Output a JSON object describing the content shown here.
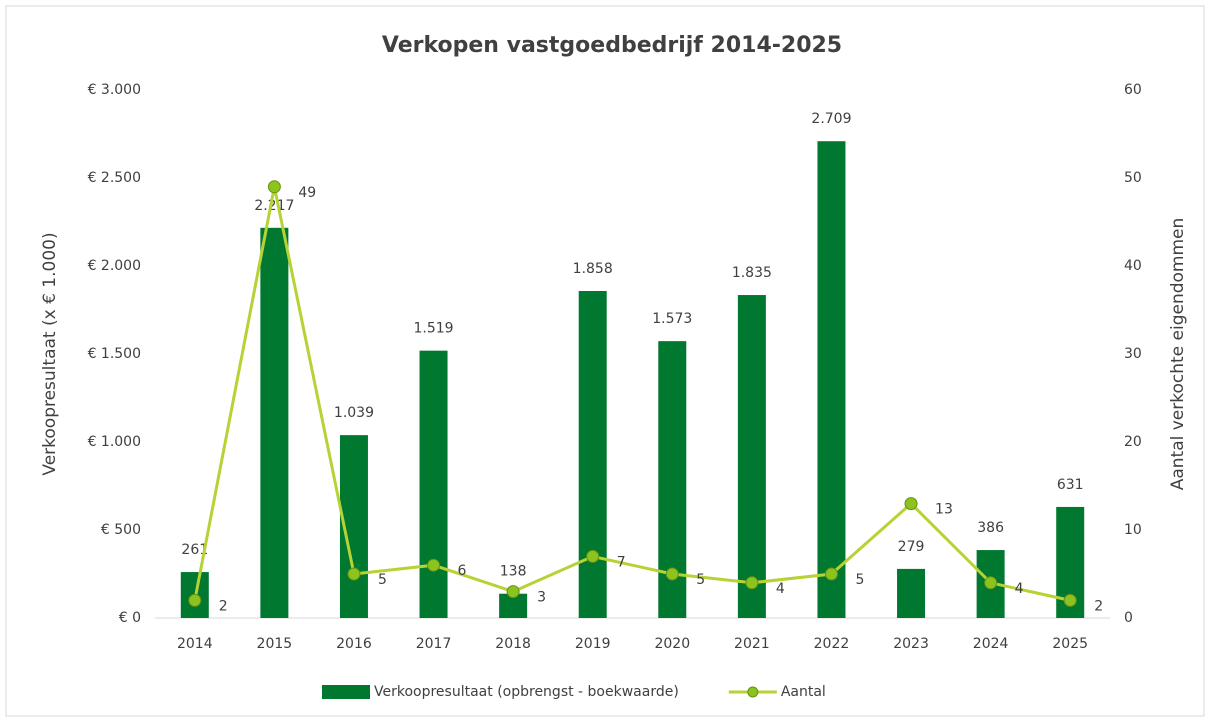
{
  "chart_data": {
    "type": "bar",
    "title": "Verkopen vastgoedbedrijf 2014-2025",
    "y_label": "Verkoopresultaat  (x € 1.000)",
    "y2_label": "Aantal verkochte eigendommen",
    "categories": [
      "2014",
      "2015",
      "2016",
      "2017",
      "2018",
      "2019",
      "2020",
      "2021",
      "2022",
      "2023",
      "2024",
      "2025"
    ],
    "series": [
      {
        "name": "Verkoopresultaat (opbrengst - boekwaarde)",
        "type": "bar",
        "color": "#00782f",
        "values": [
          261,
          2217,
          1039,
          1519,
          138,
          1858,
          1573,
          1835,
          2709,
          279,
          386,
          631
        ],
        "value_labels": [
          "261",
          "2.217",
          "1.039",
          "1.519",
          "138",
          "1.858",
          "1.573",
          "1.835",
          "2.709",
          "279",
          "386",
          "631"
        ]
      },
      {
        "name": "Aantal",
        "type": "line",
        "axis": "y2",
        "color": "#b5d334",
        "marker_color": "#8bc31f",
        "values": [
          2,
          49,
          5,
          6,
          3,
          7,
          5,
          4,
          5,
          13,
          4,
          2
        ]
      }
    ],
    "ylim": [
      0,
      3000
    ],
    "yticks": [
      {
        "value": 0,
        "label": "€ 0"
      },
      {
        "value": 500,
        "label": "€ 500"
      },
      {
        "value": 1000,
        "label": "€ 1.000"
      },
      {
        "value": 1500,
        "label": "€ 1.500"
      },
      {
        "value": 2000,
        "label": "€ 2.000"
      },
      {
        "value": 2500,
        "label": "€ 2.500"
      },
      {
        "value": 3000,
        "label": "€ 3.000"
      }
    ],
    "y2lim": [
      0,
      60
    ],
    "y2ticks": [
      0,
      10,
      20,
      30,
      40,
      50,
      60
    ],
    "grid": false,
    "legend": "bottom"
  }
}
